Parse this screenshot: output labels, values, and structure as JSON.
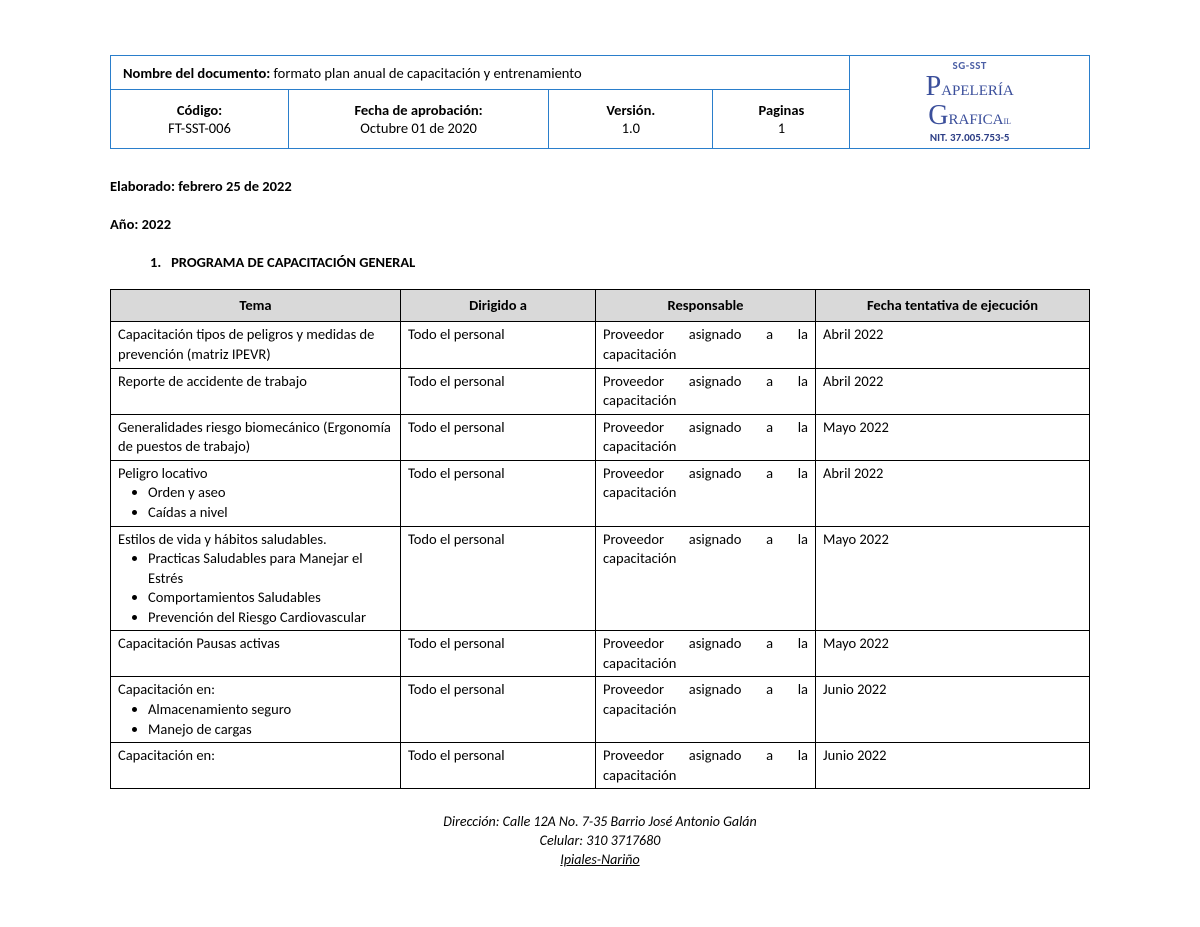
{
  "header": {
    "doc_label": "Nombre del documento:",
    "doc_value": "formato plan anual de capacitación y entrenamiento",
    "code_label": "Código:",
    "code_value": "FT-SST-006",
    "approval_label": "Fecha de aprobación:",
    "approval_value": "Octubre 01 de 2020",
    "version_label": "Versión.",
    "version_value": "1.0",
    "pages_label": "Paginas",
    "pages_value": "1",
    "logo_sg": "SG-SST",
    "logo_line1_cap": "P",
    "logo_line1_rest": "apelería",
    "logo_line2_cap": "G",
    "logo_line2_rest": "rafica",
    "logo_line2_sub": "il",
    "logo_nit": "NIT. 37.005.753-5"
  },
  "meta": {
    "elaborado": "Elaborado: febrero 25 de 2022",
    "anio": "Año: 2022"
  },
  "section": {
    "num": "1.",
    "title": "PROGRAMA DE CAPACITACIÓN GENERAL"
  },
  "columns": {
    "c1": "Tema",
    "c2": "Dirigido a",
    "c3": "Responsable",
    "c4": "Fecha tentativa de ejecución"
  },
  "resp_line1_w1": "Proveedor",
  "resp_line1_w2": "asignado",
  "resp_line1_w3": "a",
  "resp_line1_w4": "la",
  "resp_line2": "capacitación",
  "rows": [
    {
      "tema": "Capacitación tipos de peligros y medidas de prevención (matriz IPEVR)",
      "dir": "Todo el personal",
      "fecha": "Abril 2022",
      "bullets": []
    },
    {
      "tema": "Reporte de accidente de trabajo",
      "dir": "Todo el personal",
      "fecha": "Abril 2022",
      "bullets": []
    },
    {
      "tema": "Generalidades riesgo biomecánico (Ergonomía de puestos de trabajo)",
      "dir": "Todo el personal",
      "fecha": "Mayo 2022",
      "bullets": []
    },
    {
      "tema": "Peligro locativo",
      "dir": "Todo el personal",
      "fecha": "Abril 2022",
      "bullets": [
        "Orden y aseo",
        "Caídas a nivel"
      ]
    },
    {
      "tema": "Estilos de vida y hábitos saludables.",
      "dir": "Todo el personal",
      "fecha": "Mayo 2022",
      "bullets": [
        "Practicas Saludables para Manejar el Estrés",
        "Comportamientos Saludables",
        "Prevención del Riesgo Cardiovascular"
      ]
    },
    {
      "tema": "Capacitación Pausas activas",
      "dir": "Todo el personal",
      "fecha": "Mayo 2022",
      "bullets": []
    },
    {
      "tema": "Capacitación en:",
      "dir": "Todo el personal",
      "fecha": "Junio 2022",
      "bullets": [
        "Almacenamiento seguro",
        "Manejo de cargas"
      ]
    },
    {
      "tema": "Capacitación en:",
      "dir": "Todo el personal",
      "fecha": "Junio 2022",
      "bullets": []
    }
  ],
  "footer": {
    "l1": "Dirección: Calle 12A No. 7-35 Barrio José Antonio Galán",
    "l2": "Celular: 310 3717680",
    "l3": "Ipiales-Nariño"
  }
}
